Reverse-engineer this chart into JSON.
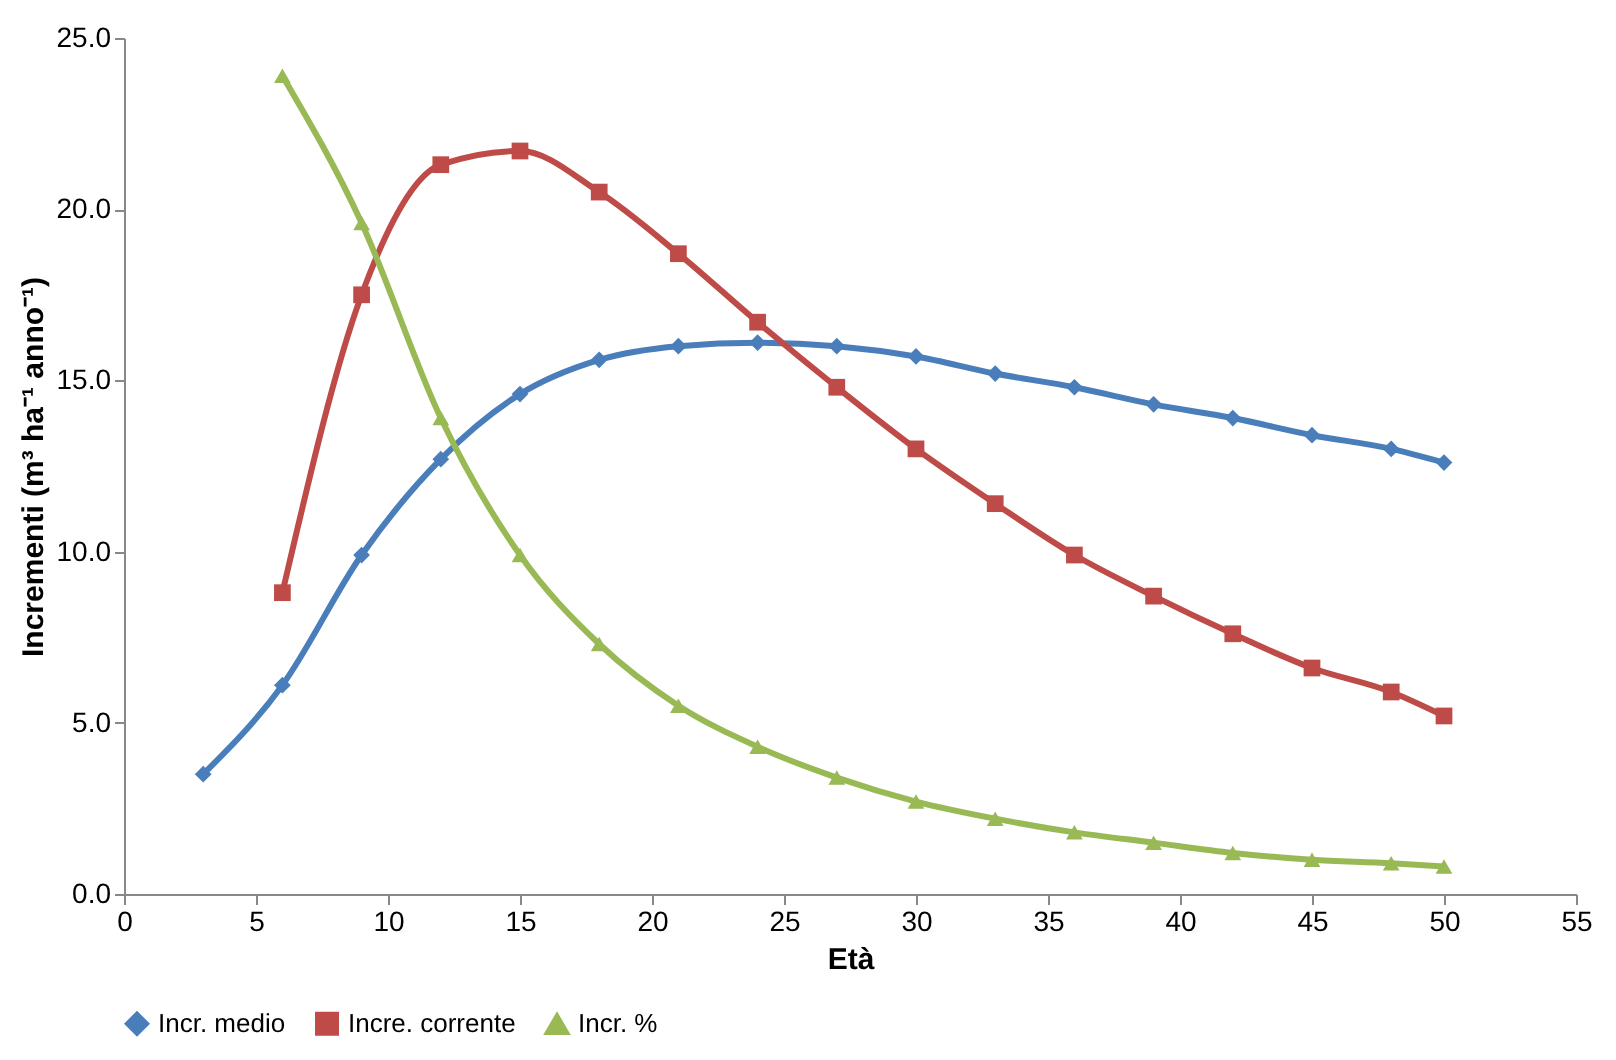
{
  "chart_data": {
    "type": "line",
    "xlabel": "Età",
    "ylabel": "Incrementi (m³ ha⁻¹ anno⁻¹)",
    "xlim": [
      0,
      55
    ],
    "xticks": [
      0,
      5,
      10,
      15,
      20,
      25,
      30,
      35,
      40,
      45,
      50,
      55
    ],
    "ylim": [
      0,
      25
    ],
    "yticks": [
      {
        "value": 0,
        "label": "0.0"
      },
      {
        "value": 5,
        "label": "5.0"
      },
      {
        "value": 10,
        "label": "10.0"
      },
      {
        "value": 15,
        "label": "15.0"
      },
      {
        "value": 20,
        "label": "20.0"
      },
      {
        "value": 25,
        "label": "25.0"
      }
    ],
    "grid": false,
    "legend": "bottom",
    "line_style": "solid",
    "series": [
      {
        "name": "Incr. medio",
        "color": "#4a7ebb",
        "marker": "diamond",
        "x": [
          3,
          6,
          9,
          12,
          15,
          18,
          21,
          24,
          27,
          30,
          33,
          36,
          39,
          42,
          45,
          48,
          50
        ],
        "values": [
          3.5,
          6.1,
          9.9,
          12.7,
          14.6,
          15.6,
          16.0,
          16.1,
          16.0,
          15.7,
          15.2,
          14.8,
          14.3,
          13.9,
          13.4,
          13.0,
          12.6
        ]
      },
      {
        "name": "Incre. corrente",
        "color": "#be4b48",
        "marker": "square",
        "x": [
          6,
          9,
          12,
          15,
          18,
          21,
          24,
          27,
          30,
          33,
          36,
          39,
          42,
          45,
          48,
          50
        ],
        "values": [
          8.8,
          17.5,
          21.3,
          21.7,
          20.5,
          18.7,
          16.7,
          14.8,
          13.0,
          11.4,
          9.9,
          8.7,
          7.6,
          6.6,
          5.9,
          5.2
        ]
      },
      {
        "name": "Incr. %",
        "color": "#98b954",
        "marker": "triangle",
        "x": [
          6,
          9,
          12,
          15,
          18,
          21,
          24,
          27,
          30,
          33,
          36,
          39,
          42,
          45,
          48,
          50
        ],
        "values": [
          23.9,
          19.6,
          13.9,
          9.9,
          7.3,
          5.5,
          4.3,
          3.4,
          2.7,
          2.2,
          1.8,
          1.5,
          1.2,
          1.0,
          0.9,
          0.8
        ]
      }
    ]
  }
}
